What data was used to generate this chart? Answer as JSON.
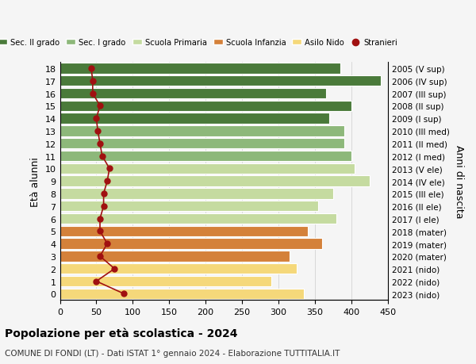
{
  "ages": [
    0,
    1,
    2,
    3,
    4,
    5,
    6,
    7,
    8,
    9,
    10,
    11,
    12,
    13,
    14,
    15,
    16,
    17,
    18
  ],
  "bar_values": [
    335,
    290,
    325,
    315,
    360,
    340,
    380,
    355,
    375,
    425,
    405,
    400,
    390,
    390,
    370,
    400,
    365,
    440,
    385
  ],
  "right_labels": [
    "2023 (nido)",
    "2022 (nido)",
    "2021 (nido)",
    "2020 (mater)",
    "2019 (mater)",
    "2018 (mater)",
    "2017 (I ele)",
    "2016 (II ele)",
    "2015 (III ele)",
    "2014 (IV ele)",
    "2013 (V ele)",
    "2012 (I med)",
    "2011 (II med)",
    "2010 (III med)",
    "2009 (I sup)",
    "2008 (II sup)",
    "2007 (III sup)",
    "2006 (IV sup)",
    "2005 (V sup)"
  ],
  "bar_colors": [
    "#f5d87a",
    "#f5d87a",
    "#f5d87a",
    "#d4813a",
    "#d4813a",
    "#d4813a",
    "#c5dba0",
    "#c5dba0",
    "#c5dba0",
    "#c5dba0",
    "#c5dba0",
    "#8db87a",
    "#8db87a",
    "#8db87a",
    "#4a7a3a",
    "#4a7a3a",
    "#4a7a3a",
    "#4a7a3a",
    "#4a7a3a"
  ],
  "stranieri_values": [
    88,
    50,
    75,
    55,
    65,
    55,
    55,
    60,
    60,
    65,
    68,
    58,
    55,
    52,
    50,
    55,
    45,
    45,
    43
  ],
  "legend_labels": [
    "Sec. II grado",
    "Sec. I grado",
    "Scuola Primaria",
    "Scuola Infanzia",
    "Asilo Nido",
    "Stranieri"
  ],
  "legend_colors": [
    "#4a7a3a",
    "#8db87a",
    "#c5dba0",
    "#d4813a",
    "#f5d87a",
    "#a01010"
  ],
  "xlabel": "",
  "ylabel_left": "Età alunni",
  "ylabel_right": "Anni di nascita",
  "title": "Popolazione per età scolastica - 2024",
  "subtitle": "COMUNE DI FONDI (LT) - Dati ISTAT 1° gennaio 2024 - Elaborazione TUTTITALIA.IT",
  "xlim": [
    0,
    450
  ],
  "xticks": [
    0,
    50,
    100,
    150,
    200,
    250,
    300,
    350,
    400,
    450
  ],
  "background_color": "#f5f5f5",
  "bar_edgecolor": "#ffffff",
  "grid_color": "#cccccc"
}
